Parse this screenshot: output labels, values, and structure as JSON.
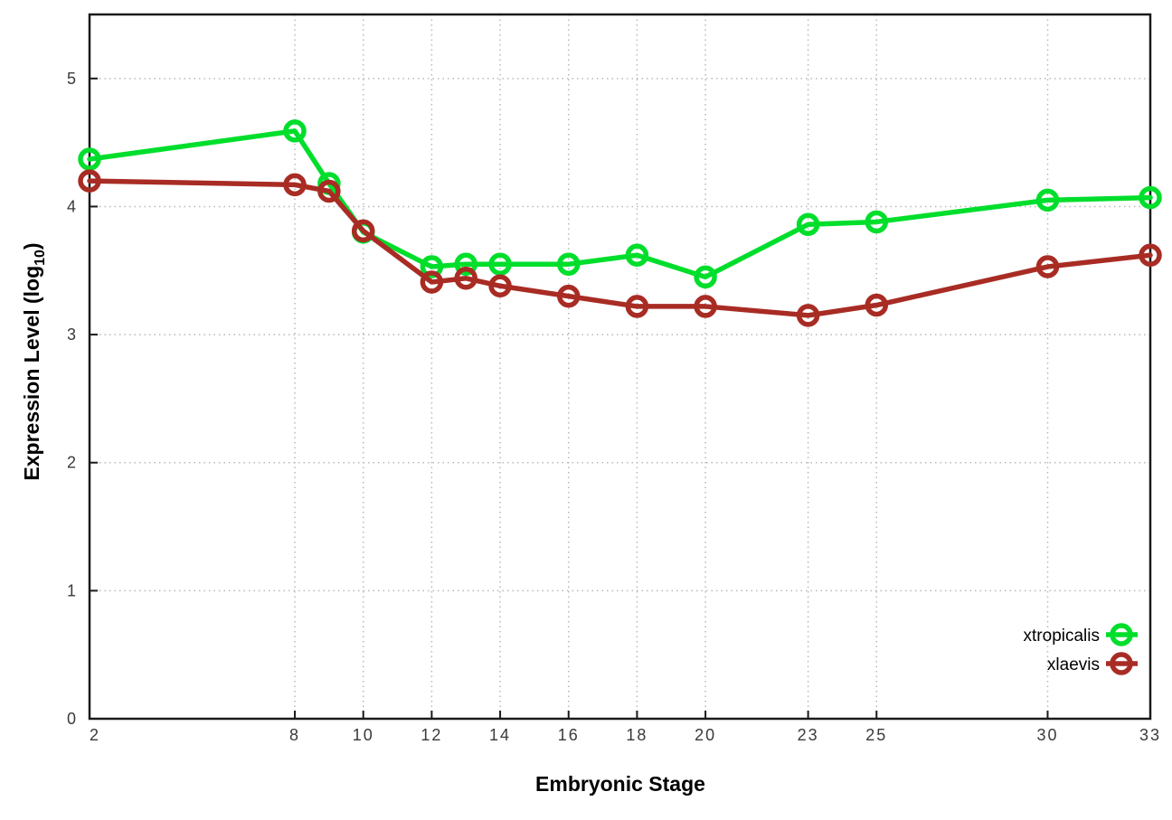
{
  "chart_data": {
    "type": "line",
    "title": "",
    "xlabel": "Embryonic Stage",
    "ylabel_main": "Expression Level (log",
    "ylabel_sub": "10",
    "ylabel_close": ")",
    "x": [
      2,
      8,
      9,
      10,
      12,
      13,
      14,
      16,
      18,
      20,
      23,
      25,
      30,
      33
    ],
    "xticks": [
      2,
      8,
      10,
      12,
      14,
      16,
      18,
      20,
      23,
      25,
      30,
      33
    ],
    "yticks": [
      0,
      1,
      2,
      3,
      4,
      5
    ],
    "xlim": [
      2,
      33
    ],
    "ylim": [
      0,
      5.5
    ],
    "grid": true,
    "legend_position": "bottom-right",
    "series": [
      {
        "name": "xtropicalis",
        "color": "#00DE2C",
        "values": [
          4.37,
          4.59,
          4.18,
          3.8,
          3.53,
          3.55,
          3.55,
          3.55,
          3.62,
          3.45,
          3.86,
          3.88,
          4.05,
          4.07
        ]
      },
      {
        "name": "xlaevis",
        "color": "#A82C24",
        "values": [
          4.2,
          4.17,
          4.12,
          3.81,
          3.41,
          3.44,
          3.38,
          3.3,
          3.22,
          3.22,
          3.15,
          3.23,
          3.53,
          3.62
        ]
      }
    ],
    "style": {
      "grid_color": "#b8b8b8",
      "border_color": "#1a1a1a",
      "line_width": 5.5,
      "marker_radius": 10
    }
  }
}
